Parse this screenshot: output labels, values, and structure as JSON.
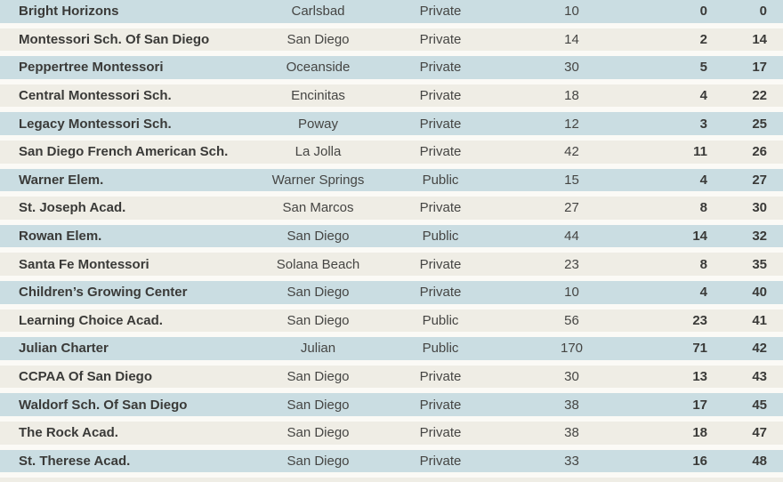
{
  "colors": {
    "row_blue": "#cadde2",
    "row_beige": "#efede5",
    "gap_background": "#fbfaf6",
    "text": "#454543",
    "text_bold": "#3a3a38"
  },
  "chart_data": {
    "type": "table",
    "header_visible": false,
    "rows": [
      {
        "name": "Bright Horizons",
        "city": "Carlsbad",
        "type": "Private",
        "n1": "10",
        "n2": "0",
        "n3": "0"
      },
      {
        "name": "Montessori Sch. Of San Diego",
        "city": "San Diego",
        "type": "Private",
        "n1": "14",
        "n2": "2",
        "n3": "14"
      },
      {
        "name": "Peppertree Montessori",
        "city": "Oceanside",
        "type": "Private",
        "n1": "30",
        "n2": "5",
        "n3": "17"
      },
      {
        "name": "Central Montessori Sch.",
        "city": "Encinitas",
        "type": "Private",
        "n1": "18",
        "n2": "4",
        "n3": "22"
      },
      {
        "name": "Legacy Montessori Sch.",
        "city": "Poway",
        "type": "Private",
        "n1": "12",
        "n2": "3",
        "n3": "25"
      },
      {
        "name": "San Diego French American Sch.",
        "city": "La Jolla",
        "type": "Private",
        "n1": "42",
        "n2": "11",
        "n3": "26"
      },
      {
        "name": "Warner Elem.",
        "city": "Warner Springs",
        "type": "Public",
        "n1": "15",
        "n2": "4",
        "n3": "27"
      },
      {
        "name": "St. Joseph Acad.",
        "city": "San Marcos",
        "type": "Private",
        "n1": "27",
        "n2": "8",
        "n3": "30"
      },
      {
        "name": "Rowan Elem.",
        "city": "San Diego",
        "type": "Public",
        "n1": "44",
        "n2": "14",
        "n3": "32"
      },
      {
        "name": "Santa Fe Montessori",
        "city": "Solana Beach",
        "type": "Private",
        "n1": "23",
        "n2": "8",
        "n3": "35"
      },
      {
        "name": "Children’s Growing Center",
        "city": "San Diego",
        "type": "Private",
        "n1": "10",
        "n2": "4",
        "n3": "40"
      },
      {
        "name": "Learning Choice Acad.",
        "city": "San Diego",
        "type": "Public",
        "n1": "56",
        "n2": "23",
        "n3": "41"
      },
      {
        "name": "Julian Charter",
        "city": "Julian",
        "type": "Public",
        "n1": "170",
        "n2": "71",
        "n3": "42"
      },
      {
        "name": "CCPAA Of San Diego",
        "city": "San Diego",
        "type": "Private",
        "n1": "30",
        "n2": "13",
        "n3": "43"
      },
      {
        "name": "Waldorf Sch. Of San Diego",
        "city": "San Diego",
        "type": "Private",
        "n1": "38",
        "n2": "17",
        "n3": "45"
      },
      {
        "name": "The Rock Acad.",
        "city": "San Diego",
        "type": "Private",
        "n1": "38",
        "n2": "18",
        "n3": "47"
      },
      {
        "name": "St. Therese Acad.",
        "city": "San Diego",
        "type": "Private",
        "n1": "33",
        "n2": "16",
        "n3": "48"
      },
      {
        "name": "",
        "city": "",
        "type": "",
        "n1": "",
        "n2": "",
        "n3": ""
      }
    ]
  }
}
